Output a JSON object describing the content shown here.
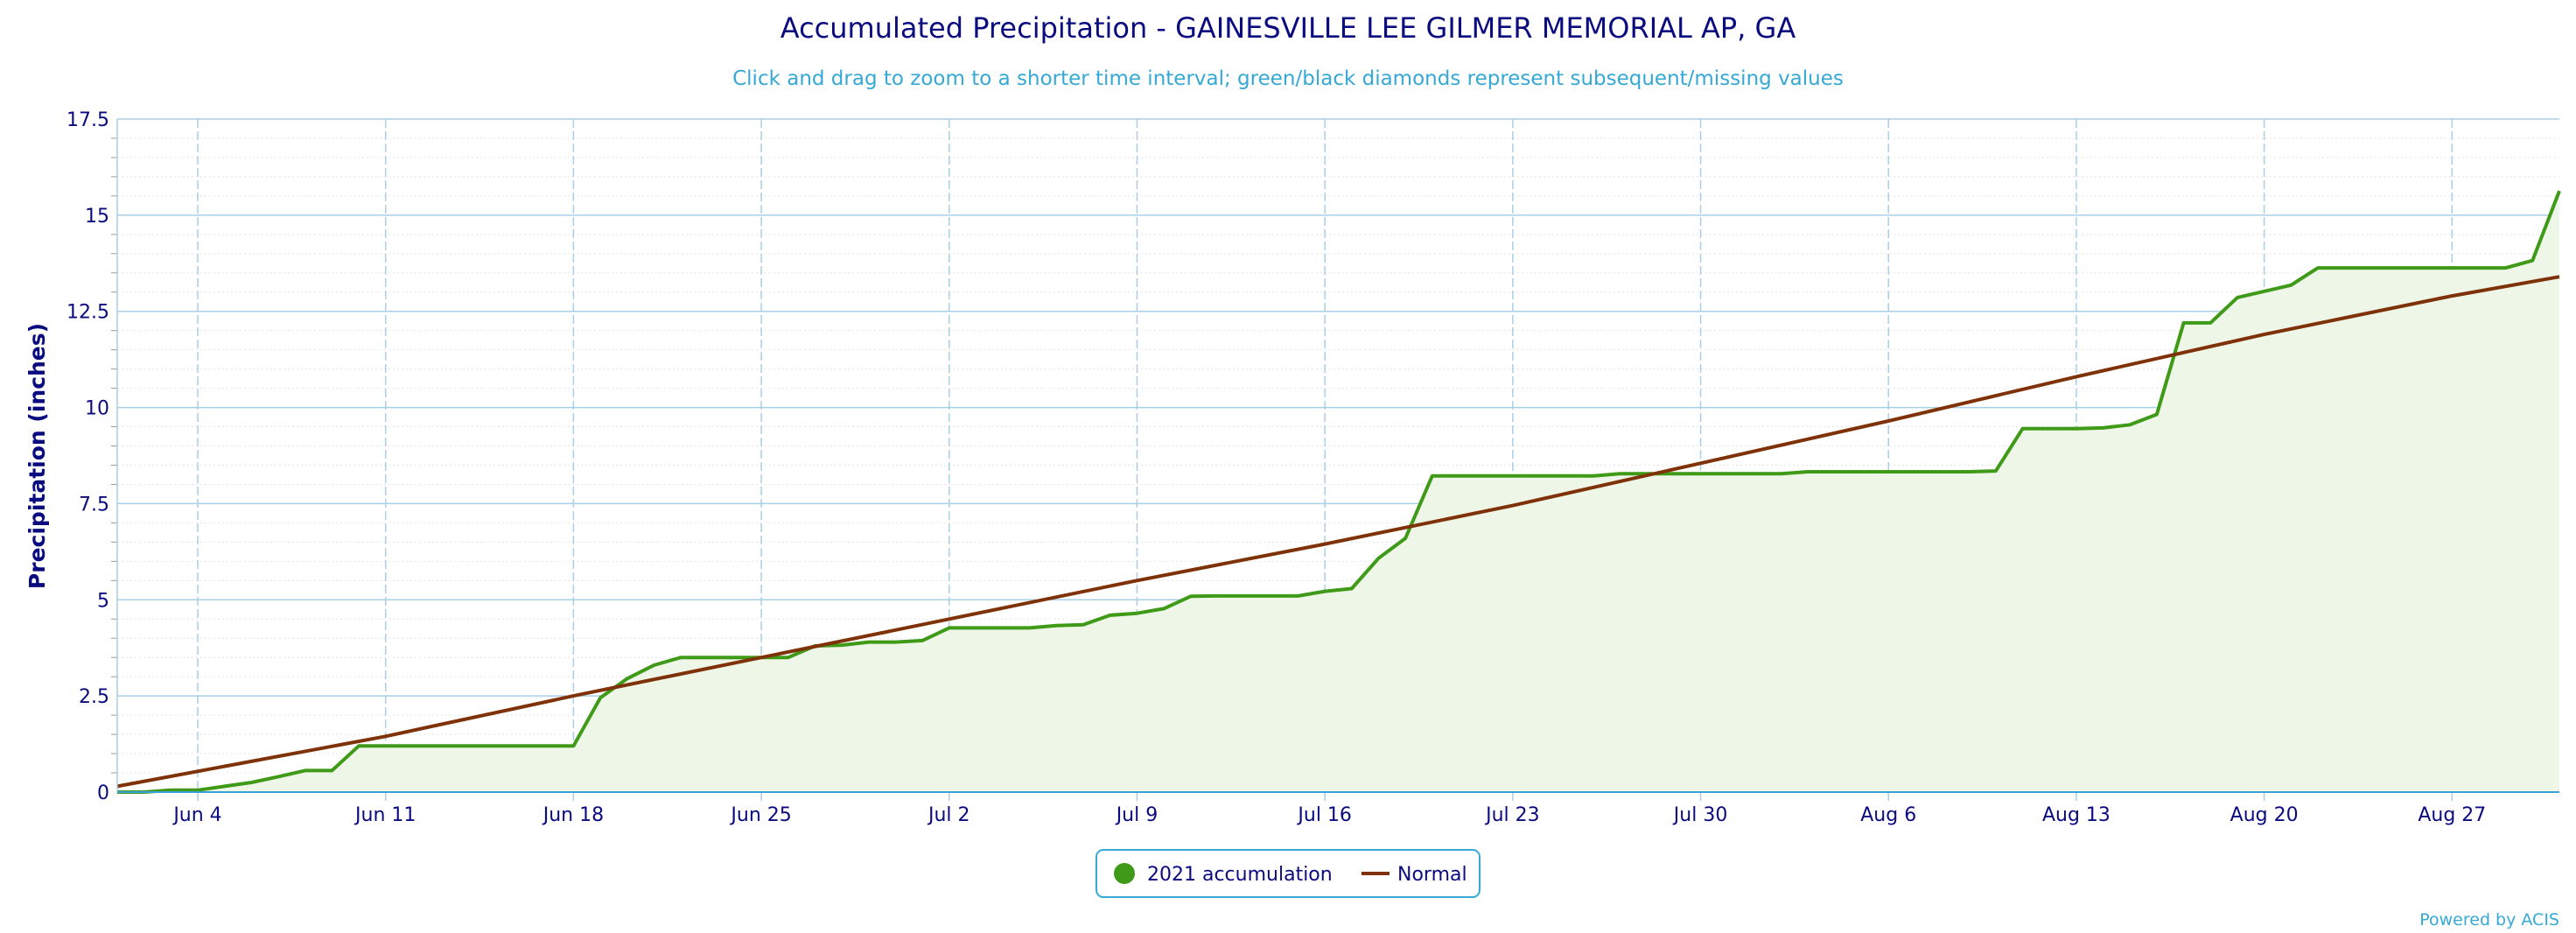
{
  "colors": {
    "accumulation": "#3f9a18",
    "accumulation_fill": "#eef6e8",
    "normal": "#7f3208",
    "grid": "#a9cfe6",
    "axis_text": "#0b0b80",
    "subtitle": "#35a8d6",
    "legend_border": "#35a8d6"
  },
  "chart_data": {
    "type": "line",
    "title": "Accumulated Precipitation - GAINESVILLE LEE GILMER MEMORIAL AP, GA",
    "subtitle": "Click and drag to zoom to a shorter time interval; green/black diamonds represent subsequent/missing values",
    "ylabel": "Precipitation (inches)",
    "xlabel": "",
    "x_range": [
      "2021-06-01",
      "2021-08-31"
    ],
    "ylim": [
      0,
      17.5
    ],
    "y_ticks": [
      0,
      2.5,
      5,
      7.5,
      10,
      12.5,
      15,
      17.5
    ],
    "y_tick_labels": [
      "0",
      "2.5",
      "5",
      "7.5",
      "10",
      "12.5",
      "15",
      "17.5"
    ],
    "x_tick_labels": [
      "Jun 4",
      "Jun 11",
      "Jun 18",
      "Jun 25",
      "Jul 2",
      "Jul 9",
      "Jul 16",
      "Jul 23",
      "Jul 30",
      "Aug 6",
      "Aug 13",
      "Aug 20",
      "Aug 27"
    ],
    "x_tick_dates": [
      "2021-06-04",
      "2021-06-11",
      "2021-06-18",
      "2021-06-25",
      "2021-07-02",
      "2021-07-09",
      "2021-07-16",
      "2021-07-23",
      "2021-07-30",
      "2021-08-06",
      "2021-08-13",
      "2021-08-20",
      "2021-08-27"
    ],
    "grid": true,
    "legend_position": "bottom-center",
    "series": [
      {
        "name": "2021 accumulation",
        "type": "area",
        "x": [
          "2021-06-01",
          "2021-06-02",
          "2021-06-03",
          "2021-06-04",
          "2021-06-05",
          "2021-06-06",
          "2021-06-07",
          "2021-06-08",
          "2021-06-09",
          "2021-06-10",
          "2021-06-18",
          "2021-06-19",
          "2021-06-20",
          "2021-06-21",
          "2021-06-22",
          "2021-06-23",
          "2021-06-26",
          "2021-06-27",
          "2021-06-28",
          "2021-06-29",
          "2021-06-30",
          "2021-07-01",
          "2021-07-02",
          "2021-07-05",
          "2021-07-06",
          "2021-07-07",
          "2021-07-08",
          "2021-07-09",
          "2021-07-10",
          "2021-07-11",
          "2021-07-12",
          "2021-07-15",
          "2021-07-16",
          "2021-07-17",
          "2021-07-18",
          "2021-07-19",
          "2021-07-20",
          "2021-07-26",
          "2021-07-27",
          "2021-08-02",
          "2021-08-03",
          "2021-08-09",
          "2021-08-10",
          "2021-08-11",
          "2021-08-13",
          "2021-08-14",
          "2021-08-15",
          "2021-08-16",
          "2021-08-17",
          "2021-08-18",
          "2021-08-19",
          "2021-08-21",
          "2021-08-22",
          "2021-08-29",
          "2021-08-30",
          "2021-08-31"
        ],
        "y": [
          0.0,
          0.0,
          0.05,
          0.05,
          0.15,
          0.25,
          0.4,
          0.56,
          0.56,
          1.2,
          1.2,
          2.45,
          2.95,
          3.3,
          3.5,
          3.5,
          3.5,
          3.8,
          3.82,
          3.9,
          3.9,
          3.94,
          4.27,
          4.27,
          4.33,
          4.35,
          4.6,
          4.65,
          4.77,
          5.09,
          5.1,
          5.1,
          5.22,
          5.29,
          6.08,
          6.6,
          8.22,
          8.22,
          8.28,
          8.28,
          8.33,
          8.33,
          8.35,
          9.45,
          9.45,
          9.47,
          9.55,
          9.82,
          12.2,
          12.2,
          12.86,
          13.18,
          13.63,
          13.63,
          13.82,
          15.63
        ]
      },
      {
        "name": "Normal",
        "type": "line",
        "x": [
          "2021-06-01",
          "2021-06-11",
          "2021-06-18",
          "2021-06-25",
          "2021-07-02",
          "2021-07-09",
          "2021-07-16",
          "2021-07-23",
          "2021-07-30",
          "2021-08-06",
          "2021-08-13",
          "2021-08-20",
          "2021-08-27",
          "2021-08-31"
        ],
        "y": [
          0.15,
          1.45,
          2.5,
          3.5,
          4.5,
          5.5,
          6.45,
          7.45,
          8.55,
          9.65,
          10.8,
          11.9,
          12.9,
          13.4
        ]
      }
    ]
  },
  "credits": "Powered by ACIS"
}
